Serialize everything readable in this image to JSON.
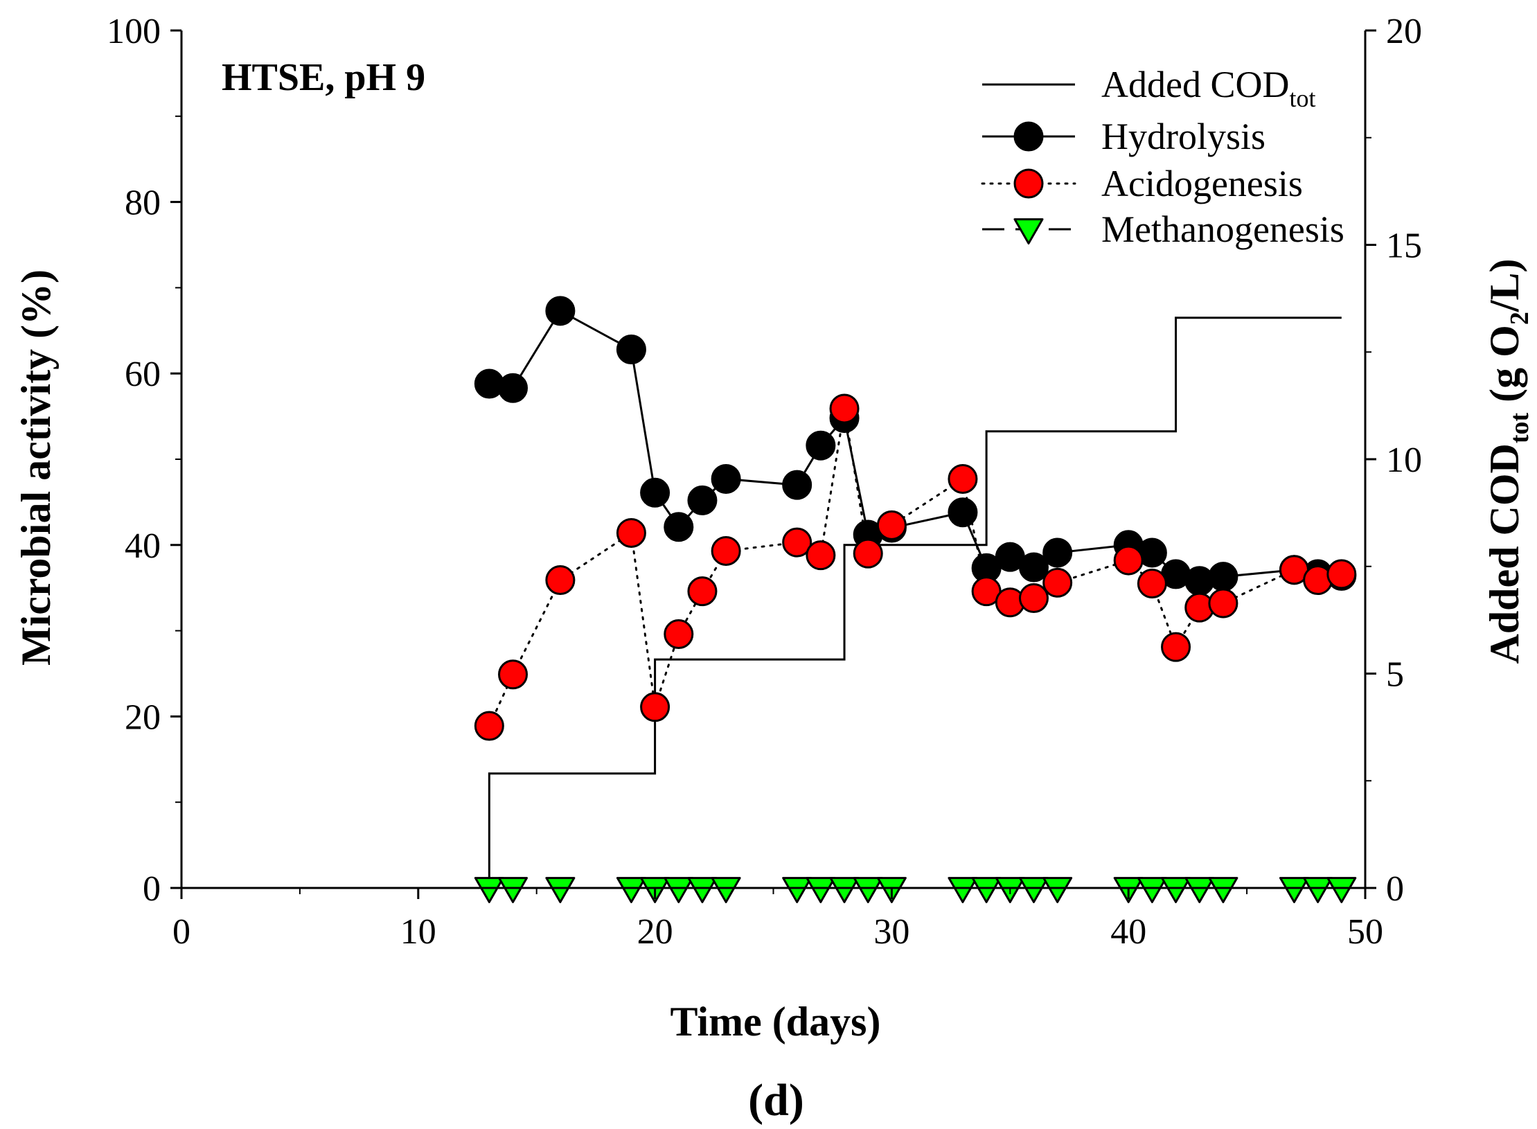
{
  "chart_data": {
    "type": "line",
    "annotation": "HTSE, pH 9",
    "caption": "(d)",
    "xlabel": "Time (days)",
    "ylabel": "Microbial activity (%)",
    "y2label": {
      "main": "Added COD",
      "sub": "tot",
      "tail1": " (g O",
      "sub2": "2",
      "tail2": "/L)"
    },
    "xlim": [
      0,
      50
    ],
    "ylim": [
      0,
      100
    ],
    "y2lim": [
      0,
      20
    ],
    "xticks": [
      "0",
      "10",
      "20",
      "30",
      "40",
      "50"
    ],
    "yticks": [
      "0",
      "20",
      "40",
      "60",
      "80",
      "100"
    ],
    "y2ticks": [
      "0",
      "5",
      "10",
      "15",
      "20"
    ],
    "legend": [
      {
        "key": "cod",
        "main": "Added COD",
        "sub": "tot"
      },
      {
        "key": "hydrolysis",
        "main": "Hydrolysis",
        "sub": ""
      },
      {
        "key": "acidogenesis",
        "main": "Acidogenesis",
        "sub": ""
      },
      {
        "key": "methanogenesis",
        "main": "Methanogenesis",
        "sub": ""
      }
    ],
    "colors": {
      "hydrolysis": "#000000",
      "acidogenesis": "#ff0000",
      "methanogenesis": "#00ff00"
    },
    "series": [
      {
        "name": "Added COD_tot",
        "key": "cod",
        "axis": "right",
        "style": "step",
        "x": [
          13,
          13,
          20,
          20,
          28,
          28,
          34,
          34,
          42,
          42,
          49
        ],
        "y": [
          0,
          2.67,
          2.67,
          5.33,
          5.33,
          8.0,
          8.0,
          10.65,
          10.65,
          13.3,
          13.3
        ]
      },
      {
        "name": "Hydrolysis",
        "key": "hydrolysis",
        "axis": "left",
        "x": [
          13,
          14,
          16,
          19,
          20,
          21,
          22,
          23,
          26,
          27,
          28,
          29,
          30,
          33,
          34,
          35,
          36,
          37,
          40,
          41,
          42,
          43,
          44,
          47,
          48,
          49
        ],
        "y": [
          58.8,
          58.3,
          67.3,
          62.8,
          46.1,
          42.1,
          45.2,
          47.7,
          47.0,
          51.6,
          54.8,
          41.2,
          42.0,
          43.8,
          37.3,
          38.6,
          37.4,
          39.1,
          40.0,
          39.1,
          36.6,
          35.8,
          36.3,
          37.1,
          36.6,
          36.4
        ]
      },
      {
        "name": "Acidogenesis",
        "key": "acidogenesis",
        "axis": "left",
        "x": [
          13,
          14,
          16,
          19,
          20,
          21,
          22,
          23,
          26,
          27,
          28,
          29,
          30,
          33,
          34,
          35,
          36,
          37,
          40,
          41,
          42,
          43,
          44,
          47,
          48,
          49
        ],
        "y": [
          18.9,
          24.9,
          35.9,
          41.4,
          21.1,
          29.6,
          34.6,
          39.3,
          40.3,
          38.8,
          55.9,
          39.0,
          42.3,
          47.7,
          34.6,
          33.3,
          33.8,
          35.6,
          38.2,
          35.5,
          28.1,
          32.7,
          33.2,
          37.1,
          35.9,
          36.6
        ]
      },
      {
        "name": "Methanogenesis",
        "key": "methanogenesis",
        "axis": "left",
        "x": [
          13,
          14,
          16,
          19,
          20,
          21,
          22,
          23,
          26,
          27,
          28,
          29,
          30,
          33,
          34,
          35,
          36,
          37,
          40,
          41,
          42,
          43,
          44,
          47,
          48,
          49
        ],
        "y": [
          0,
          0,
          0,
          0,
          0,
          0,
          0,
          0,
          0,
          0,
          0,
          0,
          0,
          0,
          0,
          0,
          0,
          0,
          0,
          0,
          0,
          0,
          0,
          0,
          0,
          0
        ]
      }
    ]
  }
}
